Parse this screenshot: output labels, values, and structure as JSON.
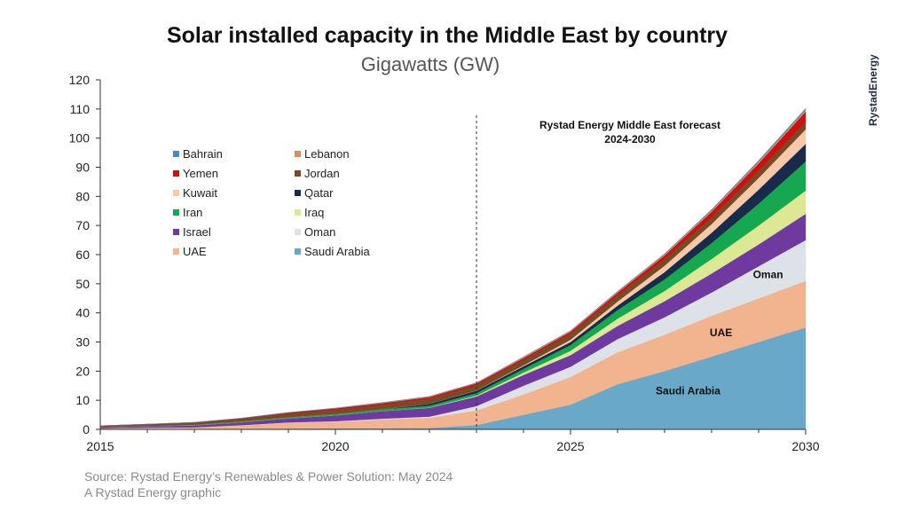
{
  "brand": {
    "text": "RystadEnergy",
    "color": "#1f2a44"
  },
  "source": {
    "line1": "Source: Rystad Energy’s Renewables & Power Solution: May 2024",
    "line2": "A Rystad Energy graphic"
  },
  "chart_data": {
    "type": "area",
    "stacked": true,
    "title": "Solar installed capacity in the Middle East by country",
    "subtitle": "Gigawatts (GW)",
    "xlabel": "",
    "ylabel": "",
    "xlim": [
      2015,
      2030
    ],
    "ylim": [
      0,
      120
    ],
    "yticks": [
      0,
      10,
      20,
      30,
      40,
      50,
      60,
      70,
      80,
      90,
      100,
      110,
      120
    ],
    "xticks": [
      2015,
      2020,
      2025,
      2030
    ],
    "grid": false,
    "legend_position": "upper-left",
    "x": [
      2015,
      2016,
      2017,
      2018,
      2019,
      2020,
      2021,
      2022,
      2023,
      2024,
      2025,
      2026,
      2027,
      2028,
      2029,
      2030
    ],
    "forecast_start": 2023,
    "forecast_label": [
      "Rystad Energy Middle East forecast",
      "2024-2030"
    ],
    "series": [
      {
        "name": "Saudi Arabia",
        "color": "#6aa8c9",
        "values": [
          0.1,
          0.1,
          0.1,
          0.2,
          0.3,
          0.4,
          0.4,
          0.5,
          1.5,
          5,
          8.5,
          15.5,
          20,
          25,
          30,
          35
        ]
      },
      {
        "name": "UAE",
        "color": "#f2b48f",
        "values": [
          0.3,
          0.5,
          0.6,
          1.2,
          2.0,
          2.2,
          3.0,
          3.5,
          5.0,
          7,
          9.5,
          11,
          12.5,
          14,
          15,
          16
        ]
      },
      {
        "name": "Oman",
        "color": "#dde2e8",
        "values": [
          0,
          0,
          0,
          0.05,
          0.1,
          0.2,
          0.3,
          0.4,
          1.5,
          3,
          3.5,
          4.5,
          6,
          8,
          11,
          14
        ]
      },
      {
        "name": "Israel",
        "color": "#6e3aa0",
        "values": [
          0.4,
          0.5,
          0.7,
          1.0,
          1.4,
          2.0,
          2.6,
          3.0,
          3.3,
          3.7,
          4,
          4.5,
          5.5,
          6.5,
          7.5,
          9
        ]
      },
      {
        "name": "Iraq",
        "color": "#dde895",
        "values": [
          0,
          0,
          0,
          0,
          0,
          0,
          0,
          0.1,
          0.3,
          0.8,
          1.5,
          2.5,
          3.5,
          5,
          6.5,
          8
        ]
      },
      {
        "name": "Iran",
        "color": "#16a850",
        "values": [
          0.05,
          0.1,
          0.2,
          0.3,
          0.4,
          0.5,
          0.6,
          0.7,
          0.9,
          1.3,
          2.0,
          3.0,
          4,
          5.5,
          7.5,
          10
        ]
      },
      {
        "name": "Qatar",
        "color": "#1a2a4a",
        "values": [
          0,
          0,
          0,
          0,
          0,
          0,
          0,
          0.6,
          0.8,
          0.9,
          1.0,
          1.5,
          2.5,
          3.5,
          4.8,
          6
        ]
      },
      {
        "name": "Kuwait",
        "color": "#f6c9a8",
        "values": [
          0,
          0,
          0,
          0,
          0,
          0,
          0,
          0,
          0.1,
          0.3,
          0.8,
          1.4,
          2.2,
          3.0,
          4.0,
          5
        ]
      },
      {
        "name": "Jordan",
        "color": "#7a4a26",
        "values": [
          0.3,
          0.5,
          0.7,
          0.9,
          1.3,
          1.5,
          1.7,
          1.8,
          1.9,
          2.0,
          2.1,
          2.2,
          2.3,
          2.4,
          2.5,
          2.6
        ]
      },
      {
        "name": "Yemen",
        "color": "#cc1111",
        "values": [
          0.1,
          0.1,
          0.1,
          0.2,
          0.3,
          0.4,
          0.4,
          0.5,
          0.5,
          0.5,
          0.6,
          0.8,
          1.2,
          1.8,
          2.5,
          3.5
        ]
      },
      {
        "name": "Lebanon",
        "color": "#e08a5a",
        "values": [
          0,
          0,
          0,
          0,
          0,
          0.1,
          0.2,
          0.2,
          0.2,
          0.3,
          0.3,
          0.3,
          0.4,
          0.5,
          0.6,
          0.6
        ]
      },
      {
        "name": "Bahrain",
        "color": "#4a88cc",
        "values": [
          0,
          0,
          0,
          0,
          0,
          0,
          0,
          0,
          0,
          0.1,
          0.1,
          0.2,
          0.2,
          0.3,
          0.4,
          0.5
        ]
      }
    ],
    "legend": [
      [
        "Bahrain",
        "Lebanon"
      ],
      [
        "Yemen",
        "Jordan"
      ],
      [
        "Kuwait",
        "Qatar"
      ],
      [
        "Iran",
        "Iraq"
      ],
      [
        "Israel",
        "Oman"
      ],
      [
        "UAE",
        "Saudi Arabia"
      ]
    ],
    "area_labels": [
      {
        "series": "Oman",
        "text": "Oman",
        "x": 2029.2,
        "y": 52
      },
      {
        "series": "UAE",
        "text": "UAE",
        "x": 2028.2,
        "y": 32
      },
      {
        "series": "Saudi Arabia",
        "text": "Saudi Arabia",
        "x": 2027.5,
        "y": 12
      }
    ]
  }
}
